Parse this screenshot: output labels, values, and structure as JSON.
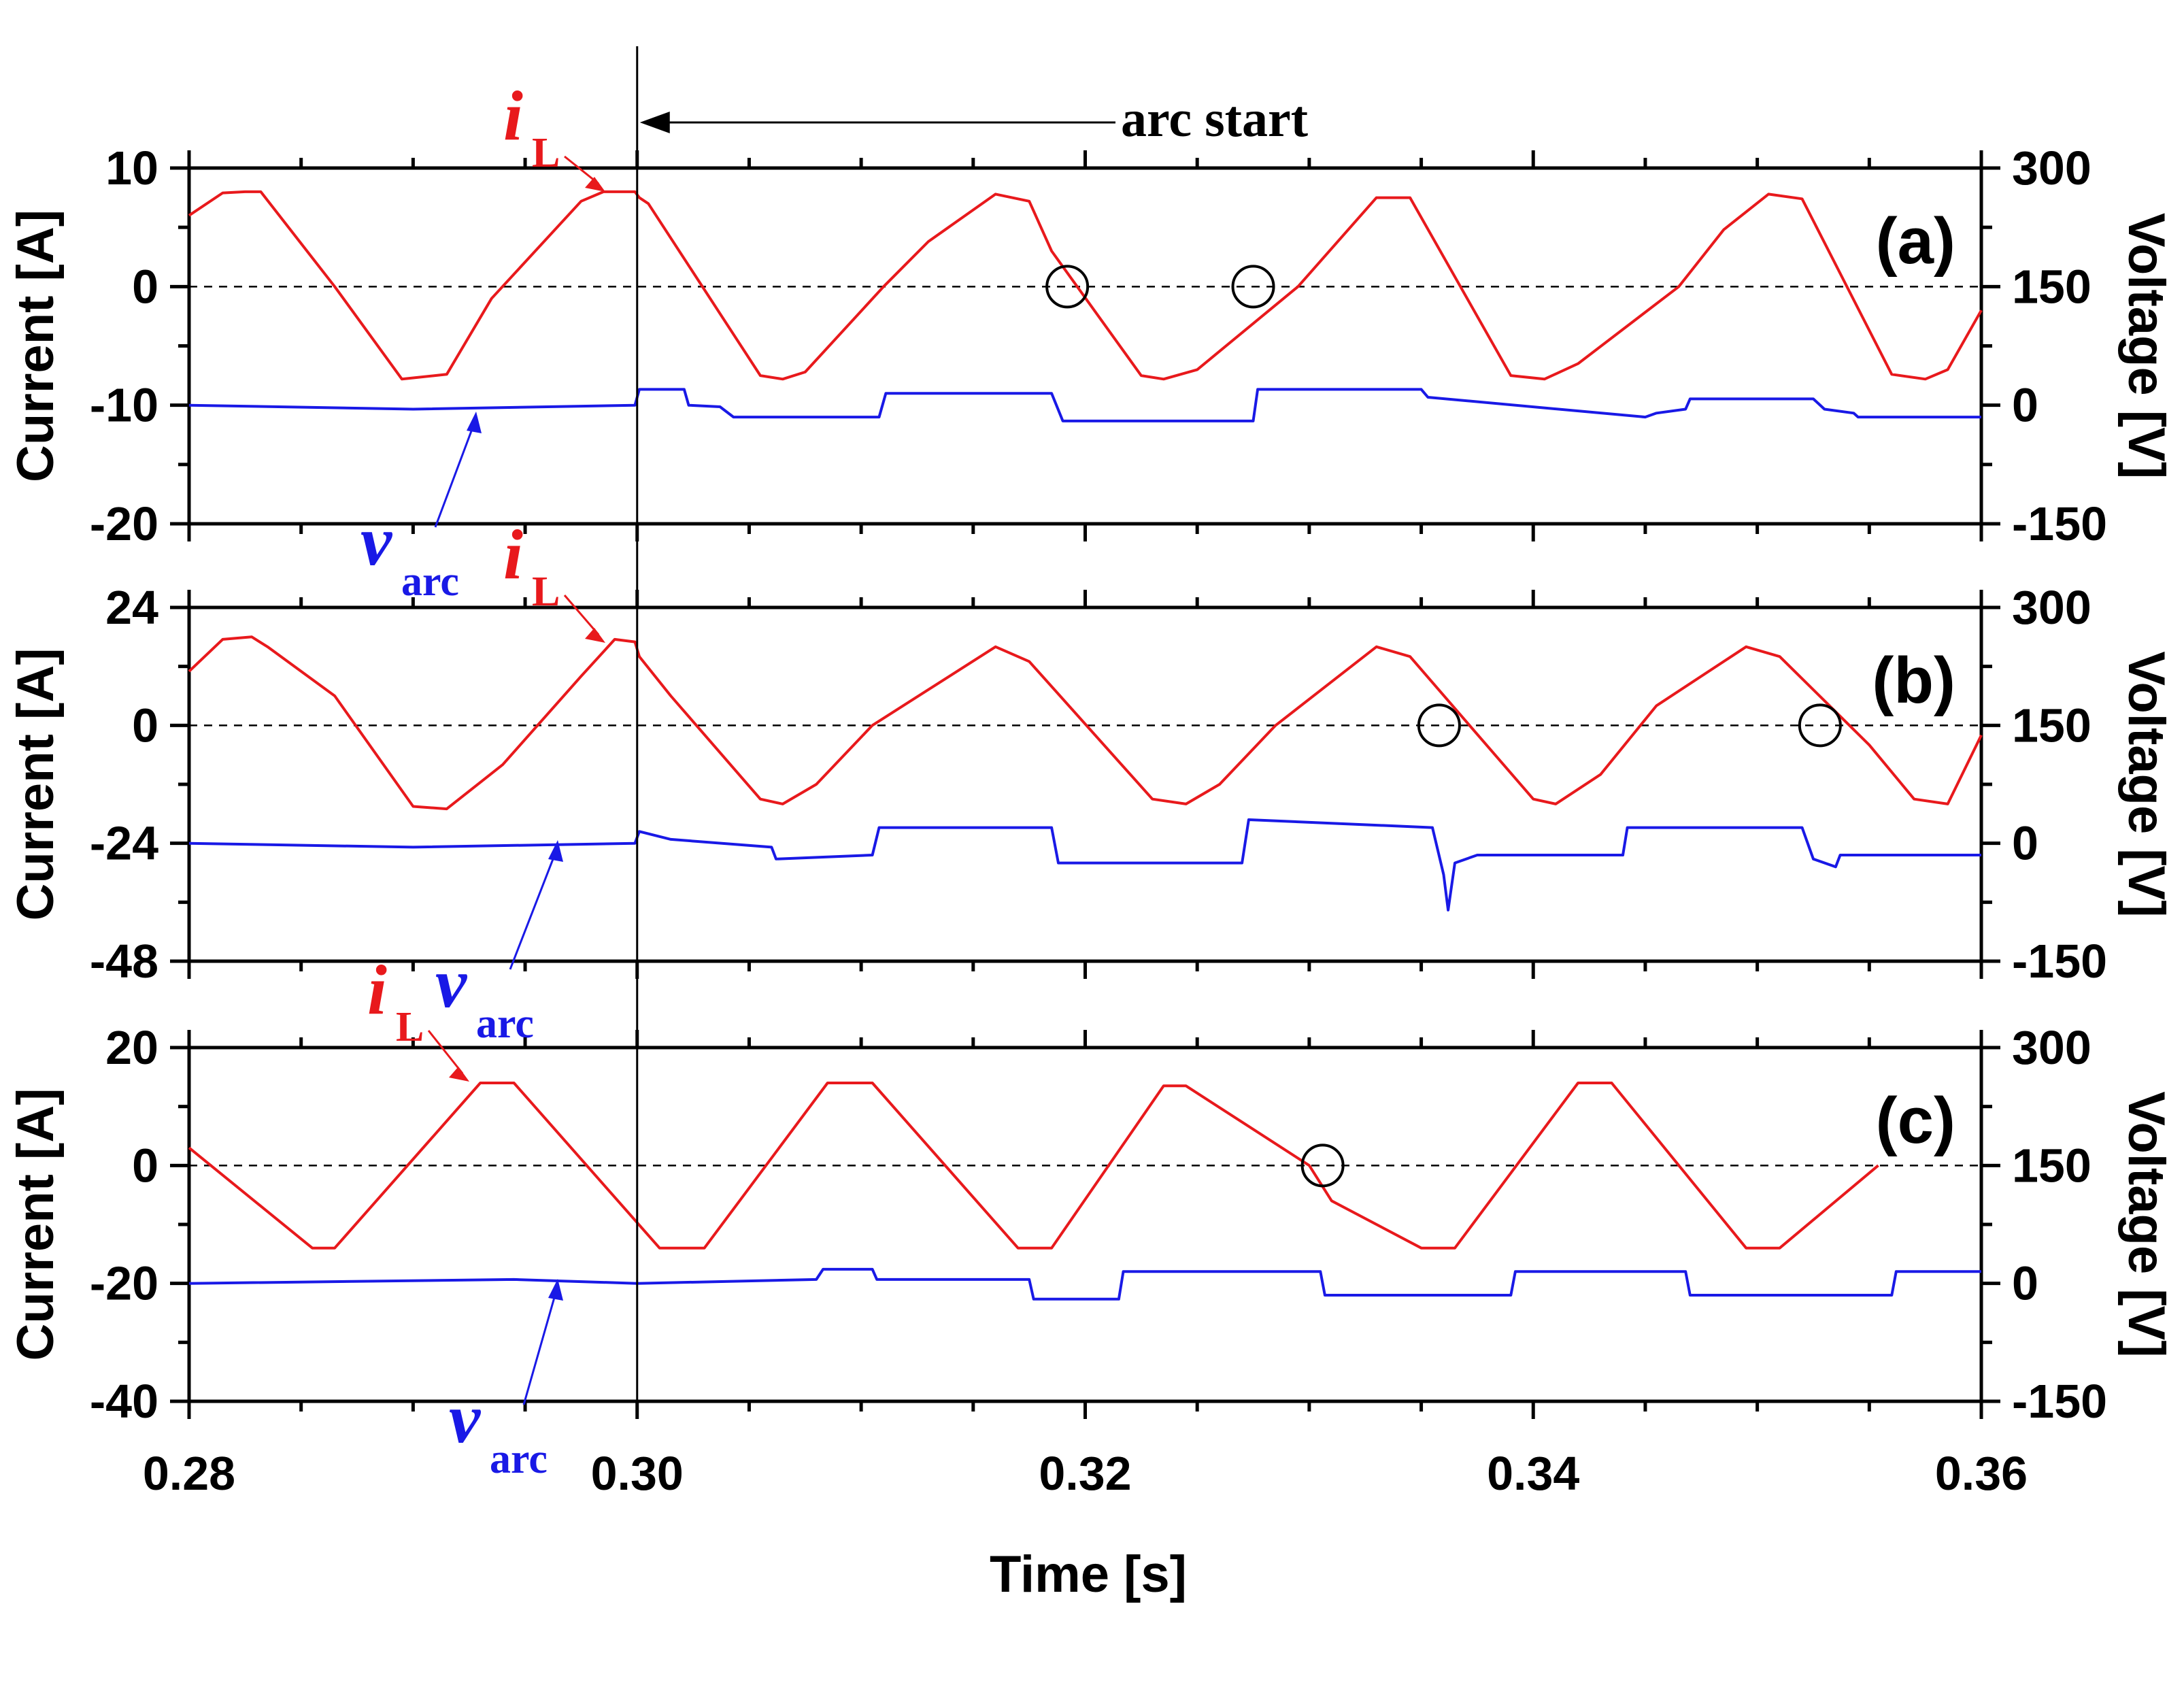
{
  "chart_data": [
    {
      "type": "line",
      "panel_label": "(a)",
      "ylabel": "Current [A]",
      "ylabel_right": "Voltage [V]",
      "ylim": [
        -20,
        10
      ],
      "y_ticks": [
        10,
        0,
        -10,
        -20
      ],
      "ylim_right": [
        -150,
        300
      ],
      "y_ticks_right": [
        300,
        150,
        0,
        -150
      ],
      "xlim": [
        0.28,
        0.36
      ],
      "zero_reference": 0,
      "series": [
        {
          "name": "iL",
          "axis": "left",
          "color": "#e8191c",
          "x": [
            0.28,
            0.2815,
            0.2825,
            0.2832,
            0.2865,
            0.2895,
            0.2915,
            0.2935,
            0.2975,
            0.2985,
            0.2999,
            0.3001,
            0.3005,
            0.3055,
            0.3065,
            0.3075,
            0.311,
            0.313,
            0.316,
            0.3175,
            0.3185,
            0.3225,
            0.3235,
            0.325,
            0.3295,
            0.333,
            0.3345,
            0.339,
            0.3405,
            0.342,
            0.3465,
            0.3485,
            0.3505,
            0.352,
            0.356,
            0.3575,
            0.3585,
            0.36
          ],
          "y": [
            6,
            7.9,
            8,
            8,
            0,
            -7.8,
            -7.4,
            -1,
            7.2,
            8,
            8,
            7.5,
            7,
            -7.5,
            -7.8,
            -7.2,
            0,
            3.8,
            7.8,
            7.2,
            3,
            -7.5,
            -7.8,
            -7,
            0,
            7.5,
            7.5,
            -7.5,
            -7.8,
            -6.5,
            0,
            4.8,
            7.8,
            7.4,
            -7.4,
            -7.8,
            -7,
            -2
          ]
        },
        {
          "name": "varc",
          "axis": "right",
          "color": "#1919e6",
          "x": [
            0.28,
            0.29,
            0.2999,
            0.3001,
            0.3021,
            0.3023,
            0.3037,
            0.3043,
            0.3108,
            0.3111,
            0.3185,
            0.319,
            0.3275,
            0.3277,
            0.335,
            0.3353,
            0.345,
            0.3455,
            0.3468,
            0.347,
            0.3525,
            0.353,
            0.3543,
            0.3545,
            0.36
          ],
          "y": [
            0,
            -5,
            0,
            20,
            20,
            0,
            -2,
            -15,
            -15,
            15,
            15,
            -20,
            -20,
            20,
            20,
            10,
            -15,
            -10,
            -5,
            8,
            8,
            -5,
            -10,
            -15,
            -15
          ]
        }
      ],
      "circles": [
        [
          0.3192,
          0
        ],
        [
          0.3275,
          0
        ]
      ]
    },
    {
      "type": "line",
      "panel_label": "(b)",
      "ylabel": "Current [A]",
      "ylabel_right": "Voltage [V]",
      "ylim": [
        -48,
        24
      ],
      "y_ticks": [
        24,
        0,
        -24,
        -48
      ],
      "ylim_right": [
        -150,
        300
      ],
      "y_ticks_right": [
        300,
        150,
        0,
        -150
      ],
      "xlim": [
        0.28,
        0.36
      ],
      "zero_reference": 0,
      "series": [
        {
          "name": "iL",
          "axis": "left",
          "color": "#e8191c",
          "x": [
            0.28,
            0.2815,
            0.2828,
            0.2835,
            0.2865,
            0.29,
            0.2915,
            0.294,
            0.2975,
            0.299,
            0.2999,
            0.3001,
            0.3015,
            0.3055,
            0.3065,
            0.308,
            0.3105,
            0.316,
            0.3175,
            0.323,
            0.3245,
            0.326,
            0.3285,
            0.333,
            0.3345,
            0.34,
            0.341,
            0.343,
            0.3455,
            0.3495,
            0.351,
            0.355,
            0.357,
            0.3585,
            0.36
          ],
          "y": [
            11,
            17.5,
            18,
            16,
            6,
            -16.5,
            -17,
            -8,
            10,
            17.5,
            17,
            14,
            6,
            -15,
            -16,
            -12,
            0,
            16,
            13,
            -15,
            -16,
            -12,
            0,
            16,
            14,
            -15,
            -16,
            -10,
            4,
            16,
            14,
            -4,
            -15,
            -16,
            -2
          ]
        },
        {
          "name": "varc",
          "axis": "right",
          "color": "#1919e6",
          "x": [
            0.28,
            0.29,
            0.2999,
            0.3001,
            0.3015,
            0.306,
            0.3062,
            0.3105,
            0.3108,
            0.3185,
            0.3188,
            0.327,
            0.3273,
            0.3355,
            0.336,
            0.3362,
            0.3365,
            0.3375,
            0.344,
            0.3442,
            0.352,
            0.3525,
            0.3535,
            0.3537,
            0.36
          ],
          "y": [
            0,
            -5,
            0,
            15,
            5,
            -5,
            -20,
            -15,
            20,
            20,
            -25,
            -25,
            30,
            20,
            -40,
            -85,
            -25,
            -15,
            -15,
            20,
            20,
            -20,
            -30,
            -15,
            -15
          ]
        }
      ],
      "circles": [
        [
          0.3358,
          0
        ],
        [
          0.3528,
          0
        ]
      ]
    },
    {
      "type": "line",
      "panel_label": "(c)",
      "ylabel": "Current [A]",
      "ylabel_right": "Voltage [V]",
      "ylim": [
        -40,
        20
      ],
      "y_ticks": [
        20,
        0,
        -20,
        -40
      ],
      "ylim_right": [
        -150,
        300
      ],
      "y_ticks_right": [
        300,
        150,
        0,
        -150
      ],
      "xlim": [
        0.28,
        0.36
      ],
      "xlabel": "Time [s]",
      "x_ticks": [
        0.28,
        0.3,
        0.32,
        0.34,
        0.36
      ],
      "x_tick_labels": [
        "0.28",
        "0.30",
        "0.32",
        "0.34",
        "0.36"
      ],
      "zero_reference": 0,
      "series": [
        {
          "name": "iL",
          "axis": "left",
          "color": "#e8191c",
          "x": [
            0.28,
            0.2855,
            0.2865,
            0.293,
            0.2945,
            0.301,
            0.303,
            0.3085,
            0.3105,
            0.317,
            0.3185,
            0.3235,
            0.3245,
            0.33,
            0.331,
            0.335,
            0.3365,
            0.342,
            0.3435,
            0.3495,
            0.351,
            0.3554
          ],
          "y": [
            3,
            -14,
            -14,
            14,
            14,
            -14,
            -14,
            14,
            14,
            -14,
            -14,
            13.5,
            13.5,
            0,
            -6,
            -14,
            -14,
            14,
            14,
            -14,
            -14,
            0
          ]
        },
        {
          "name": "varc",
          "axis": "right",
          "color": "#1919e6",
          "x": [
            0.28,
            0.2945,
            0.3,
            0.308,
            0.3083,
            0.3105,
            0.3107,
            0.3175,
            0.3177,
            0.3215,
            0.3217,
            0.3305,
            0.3307,
            0.339,
            0.3392,
            0.3468,
            0.347,
            0.356,
            0.3562,
            0.36
          ],
          "y": [
            0,
            5,
            0,
            5,
            18,
            18,
            5,
            5,
            -20,
            -20,
            15,
            15,
            -15,
            -15,
            15,
            15,
            -15,
            -15,
            15,
            15
          ]
        }
      ],
      "circles": [
        [
          0.3306,
          0
        ]
      ]
    }
  ],
  "annotations": {
    "arc_start": {
      "text": "arc start",
      "x": 0.3
    },
    "il_labels": [
      {
        "panel": 0,
        "main": "i",
        "sub": "L"
      },
      {
        "panel": 1,
        "main": "i",
        "sub": "L"
      },
      {
        "panel": 2,
        "main": "i",
        "sub": "L"
      }
    ],
    "varc_labels": [
      {
        "panel": 0,
        "main": "v",
        "sub": "arc"
      },
      {
        "panel": 1,
        "main": "v",
        "sub": "arc"
      },
      {
        "panel": 2,
        "main": "v",
        "sub": "arc"
      }
    ]
  }
}
